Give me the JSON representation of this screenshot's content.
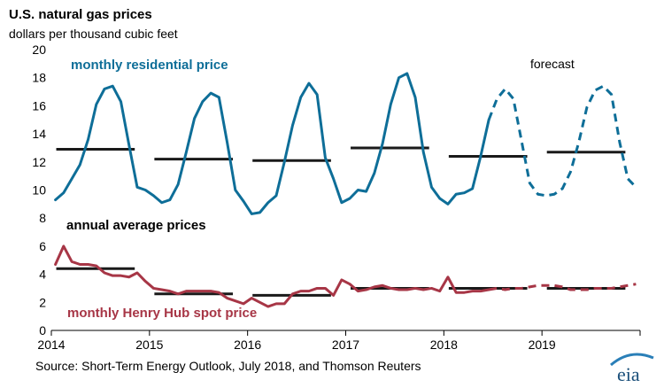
{
  "chart_data": {
    "type": "line",
    "title": "U.S. natural gas prices",
    "subtitle": "dollars per thousand cubic feet",
    "source": "Source: Short-Term Energy Outlook, July 2018, and Thomson Reuters",
    "logo_text": "eia",
    "ylim": [
      0,
      20
    ],
    "yticks": [
      0,
      2,
      4,
      6,
      8,
      10,
      12,
      14,
      16,
      18,
      20
    ],
    "xlim": [
      2014,
      2020
    ],
    "xticks": [
      "2014",
      "2015",
      "2016",
      "2017",
      "2018",
      "2019"
    ],
    "grid": false,
    "forecast_label": "forecast",
    "forecast_start_index": 53,
    "annotations": {
      "residential": "monthly residential price",
      "annual": "annual average prices",
      "henry_hub": "monthly Henry Hub spot price"
    },
    "colors": {
      "residential": "#0e6e98",
      "henry_hub": "#a73646",
      "annual": "#1a1a1a"
    },
    "series": [
      {
        "name": "monthly residential price",
        "values": [
          9.3,
          9.8,
          10.8,
          11.8,
          13.6,
          16.1,
          17.2,
          17.4,
          16.3,
          13.2,
          10.2,
          10.0,
          9.6,
          9.1,
          9.3,
          10.4,
          12.7,
          15.1,
          16.3,
          16.9,
          16.6,
          13.4,
          10.0,
          9.2,
          8.3,
          8.4,
          9.1,
          9.6,
          12.0,
          14.6,
          16.6,
          17.6,
          16.8,
          12.3,
          10.8,
          9.1,
          9.4,
          10.0,
          9.9,
          11.2,
          13.3,
          16.1,
          18.0,
          18.3,
          16.6,
          12.7,
          10.2,
          9.4,
          9.0,
          9.7,
          9.8,
          10.1,
          12.4,
          15.0,
          16.5,
          17.2,
          16.5,
          13.5,
          10.5,
          9.7,
          9.6,
          9.7,
          10.1,
          11.3,
          13.4,
          15.9,
          17.1,
          17.4,
          16.8,
          13.4,
          10.8,
          10.2
        ]
      },
      {
        "name": "monthly Henry Hub spot price",
        "values": [
          4.7,
          6.0,
          4.9,
          4.7,
          4.7,
          4.6,
          4.1,
          3.9,
          3.9,
          3.8,
          4.1,
          3.5,
          3.0,
          2.9,
          2.8,
          2.6,
          2.8,
          2.8,
          2.8,
          2.8,
          2.7,
          2.3,
          2.1,
          1.9,
          2.3,
          2.0,
          1.7,
          1.9,
          1.9,
          2.6,
          2.8,
          2.8,
          3.0,
          3.0,
          2.5,
          3.6,
          3.3,
          2.8,
          2.9,
          3.1,
          3.2,
          3.0,
          2.9,
          2.9,
          3.0,
          2.9,
          3.0,
          2.8,
          3.8,
          2.7,
          2.7,
          2.8,
          2.8,
          2.9,
          3.0,
          2.9,
          3.0,
          3.0,
          3.1,
          3.2,
          3.2,
          3.2,
          3.1,
          2.9,
          2.9,
          2.9,
          3.0,
          3.0,
          3.0,
          3.1,
          3.2,
          3.3
        ]
      }
    ],
    "annual_averages": {
      "residential": [
        12.9,
        12.2,
        12.1,
        13.0,
        12.4,
        12.7
      ],
      "henry_hub": [
        4.4,
        2.6,
        2.5,
        3.0,
        3.0,
        3.0
      ]
    }
  }
}
